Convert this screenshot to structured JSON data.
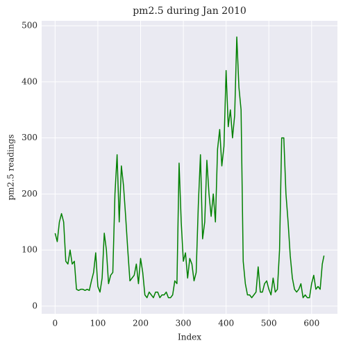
{
  "chart_data": {
    "type": "line",
    "title": "pm2.5 during Jan 2010",
    "x_label": "Index",
    "y_label": "pm2.5 readings",
    "x": [
      0,
      5,
      10,
      15,
      20,
      25,
      30,
      35,
      40,
      45,
      50,
      55,
      60,
      65,
      70,
      75,
      80,
      85,
      90,
      95,
      100,
      105,
      110,
      115,
      120,
      125,
      130,
      135,
      140,
      145,
      150,
      155,
      160,
      165,
      170,
      175,
      180,
      185,
      190,
      195,
      200,
      205,
      210,
      215,
      220,
      225,
      230,
      235,
      240,
      245,
      250,
      255,
      260,
      265,
      270,
      275,
      280,
      285,
      290,
      295,
      300,
      305,
      310,
      315,
      320,
      325,
      330,
      335,
      340,
      345,
      350,
      355,
      360,
      365,
      370,
      375,
      380,
      385,
      390,
      395,
      400,
      405,
      410,
      415,
      420,
      425,
      430,
      435,
      440,
      445,
      450,
      455,
      460,
      465,
      470,
      475,
      480,
      485,
      490,
      495,
      500,
      505,
      510,
      515,
      520,
      525,
      530,
      535,
      540,
      545,
      550,
      555,
      560,
      565,
      570,
      575,
      580,
      585,
      590,
      595,
      600,
      605,
      610,
      615,
      620,
      625,
      629
    ],
    "series": [
      {
        "name": "pm2.5",
        "color": "#008000",
        "values": [
          130,
          115,
          150,
          165,
          150,
          80,
          75,
          100,
          75,
          80,
          30,
          28,
          30,
          30,
          28,
          30,
          28,
          45,
          60,
          95,
          35,
          25,
          50,
          130,
          100,
          40,
          55,
          60,
          200,
          270,
          150,
          250,
          215,
          160,
          100,
          45,
          50,
          55,
          75,
          40,
          85,
          60,
          20,
          15,
          25,
          20,
          15,
          25,
          25,
          15,
          20,
          20,
          25,
          15,
          15,
          20,
          45,
          40,
          255,
          150,
          80,
          95,
          50,
          85,
          75,
          45,
          60,
          180,
          270,
          120,
          150,
          260,
          200,
          160,
          200,
          150,
          280,
          315,
          250,
          285,
          420,
          320,
          350,
          300,
          340,
          480,
          390,
          350,
          80,
          40,
          20,
          20,
          15,
          20,
          25,
          70,
          25,
          25,
          40,
          45,
          30,
          20,
          50,
          25,
          30,
          100,
          300,
          300,
          200,
          150,
          90,
          50,
          30,
          25,
          30,
          40,
          15,
          20,
          15,
          15,
          40,
          55,
          30,
          35,
          30,
          75,
          90
        ]
      }
    ],
    "xlim": [
      -31.45,
      660.45
    ],
    "ylim": [
      -13.75,
      508.75
    ],
    "xticks": [
      0,
      100,
      200,
      300,
      400,
      500,
      600
    ],
    "yticks": [
      0,
      100,
      200,
      300,
      400,
      500
    ],
    "grid": true
  }
}
